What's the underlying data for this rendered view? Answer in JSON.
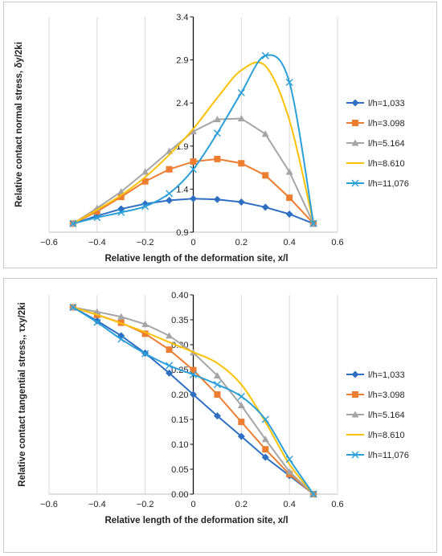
{
  "chart_data": [
    {
      "type": "line",
      "title": "",
      "xlabel": "Relative length of the deformation site, x/l",
      "ylabel": "Relative contact normal stress, δy/2ki",
      "xlim": [
        -0.6,
        0.6
      ],
      "ylim": [
        0.9,
        3.4
      ],
      "xticks": [
        -0.6,
        -0.4,
        -0.2,
        0,
        0.2,
        0.4,
        0.6
      ],
      "xtick_labels": [
        "−0.6",
        "−0.4",
        "−0.2",
        "0",
        "0.2",
        "0.4",
        "0.6"
      ],
      "yticks": [
        0.9,
        1.4,
        1.9,
        2.4,
        2.9,
        3.4
      ],
      "ytick_labels": [
        "0.9",
        "1.4",
        "1.9",
        "2.4",
        "2.9",
        "3.4"
      ],
      "grid": "vertical",
      "legend": "right",
      "series": [
        {
          "name": "l/h=1,033",
          "color": "#2e6fc4",
          "marker": "diamond",
          "smooth": false,
          "x": [
            -0.5,
            -0.4,
            -0.3,
            -0.2,
            -0.1,
            0,
            0.1,
            0.2,
            0.3,
            0.4,
            0.5
          ],
          "y": [
            1.0,
            1.09,
            1.17,
            1.23,
            1.27,
            1.29,
            1.28,
            1.25,
            1.19,
            1.11,
            1.0
          ]
        },
        {
          "name": "l/h=3.098",
          "color": "#ed7d31",
          "marker": "square",
          "smooth": false,
          "x": [
            -0.5,
            -0.4,
            -0.3,
            -0.2,
            -0.1,
            0,
            0.1,
            0.2,
            0.3,
            0.4,
            0.5
          ],
          "y": [
            1.0,
            1.14,
            1.31,
            1.49,
            1.63,
            1.72,
            1.75,
            1.7,
            1.56,
            1.3,
            1.0
          ]
        },
        {
          "name": "l/h=5.164",
          "color": "#a5a5a5",
          "marker": "triangle",
          "smooth": false,
          "x": [
            -0.5,
            -0.4,
            -0.3,
            -0.2,
            -0.1,
            0,
            0.1,
            0.2,
            0.3,
            0.4,
            0.5
          ],
          "y": [
            1.0,
            1.18,
            1.37,
            1.6,
            1.84,
            2.07,
            2.21,
            2.22,
            2.04,
            1.6,
            1.0
          ]
        },
        {
          "name": "l/h=8.610",
          "color": "#ffc000",
          "marker": "none",
          "smooth": true,
          "x": [
            -0.5,
            -0.4,
            -0.3,
            -0.2,
            -0.1,
            0,
            0.1,
            0.2,
            0.3,
            0.4,
            0.5
          ],
          "y": [
            1.0,
            1.16,
            1.33,
            1.54,
            1.8,
            2.1,
            2.46,
            2.78,
            2.83,
            2.2,
            1.0
          ]
        },
        {
          "name": "l/h=11,076",
          "color": "#2a9fd8",
          "marker": "x",
          "smooth": true,
          "x": [
            -0.5,
            -0.4,
            -0.3,
            -0.2,
            -0.1,
            0,
            0.1,
            0.2,
            0.3,
            0.4,
            0.5
          ],
          "y": [
            1.0,
            1.07,
            1.13,
            1.2,
            1.35,
            1.63,
            2.05,
            2.52,
            2.95,
            2.64,
            1.0
          ]
        }
      ]
    },
    {
      "type": "line",
      "title": "",
      "xlabel": "Relative length of the deformation site, x/l",
      "ylabel": "Relative contact tangential stress,, τxy/2ki",
      "xlim": [
        -0.6,
        0.6
      ],
      "ylim": [
        0.0,
        0.4
      ],
      "xticks": [
        -0.6,
        -0.4,
        -0.2,
        0,
        0.2,
        0.4,
        0.6
      ],
      "xtick_labels": [
        "−0.6",
        "−0.4",
        "−0.2",
        "0",
        "0.2",
        "0.4",
        "0.6"
      ],
      "yticks": [
        0.0,
        0.05,
        0.1,
        0.15,
        0.2,
        0.25,
        0.3,
        0.35,
        0.4
      ],
      "ytick_labels": [
        "0.00",
        "0.05",
        "0.10",
        "0.15",
        "0.20",
        "0.25",
        "0.30",
        "0.35",
        "0.40"
      ],
      "grid": "vertical",
      "legend": "right",
      "series": [
        {
          "name": "l/h=1,033",
          "color": "#2e6fc4",
          "marker": "diamond",
          "smooth": false,
          "x": [
            -0.5,
            -0.4,
            -0.3,
            -0.2,
            -0.1,
            0,
            0.1,
            0.2,
            0.3,
            0.4,
            0.5
          ],
          "y": [
            0.375,
            0.348,
            0.318,
            0.283,
            0.243,
            0.2,
            0.157,
            0.116,
            0.074,
            0.037,
            0.0
          ]
        },
        {
          "name": "l/h=3.098",
          "color": "#ed7d31",
          "marker": "square",
          "smooth": false,
          "x": [
            -0.5,
            -0.4,
            -0.3,
            -0.2,
            -0.1,
            0,
            0.1,
            0.2,
            0.3,
            0.4,
            0.5
          ],
          "y": [
            0.375,
            0.36,
            0.344,
            0.322,
            0.29,
            0.249,
            0.2,
            0.145,
            0.09,
            0.04,
            0.0
          ]
        },
        {
          "name": "l/h=5.164",
          "color": "#a5a5a5",
          "marker": "triangle",
          "smooth": false,
          "x": [
            -0.5,
            -0.4,
            -0.3,
            -0.2,
            -0.1,
            0,
            0.1,
            0.2,
            0.3,
            0.4,
            0.5
          ],
          "y": [
            0.375,
            0.366,
            0.356,
            0.341,
            0.318,
            0.284,
            0.238,
            0.178,
            0.11,
            0.045,
            0.0
          ]
        },
        {
          "name": "l/h=8.610",
          "color": "#ffc000",
          "marker": "none",
          "smooth": true,
          "x": [
            -0.5,
            -0.4,
            -0.3,
            -0.2,
            -0.1,
            0,
            0.1,
            0.2,
            0.3,
            0.4,
            0.5
          ],
          "y": [
            0.375,
            0.36,
            0.343,
            0.325,
            0.305,
            0.285,
            0.263,
            0.22,
            0.145,
            0.06,
            0.0
          ]
        },
        {
          "name": "l/h=11,076",
          "color": "#2a9fd8",
          "marker": "x",
          "smooth": true,
          "x": [
            -0.5,
            -0.4,
            -0.3,
            -0.2,
            -0.1,
            0,
            0.1,
            0.2,
            0.3,
            0.4,
            0.5
          ],
          "y": [
            0.375,
            0.345,
            0.311,
            0.282,
            0.258,
            0.24,
            0.22,
            0.196,
            0.15,
            0.07,
            0.0
          ]
        }
      ]
    }
  ]
}
